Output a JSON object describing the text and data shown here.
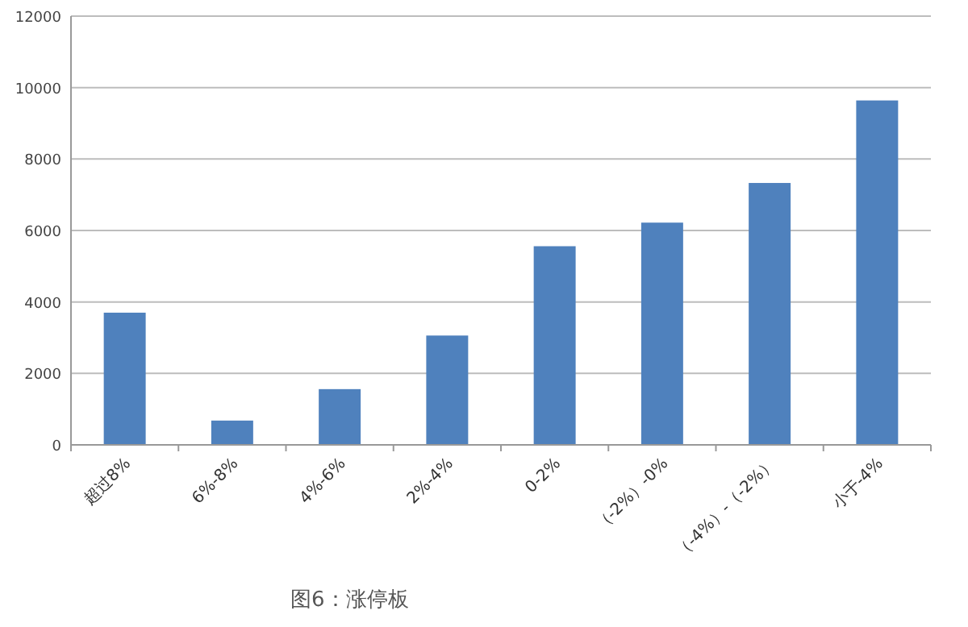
{
  "chart_data": {
    "type": "bar",
    "categories": [
      "超过8%",
      "6%-8%",
      "4%-6%",
      "2%-4%",
      "0-2%",
      "（-2%）-0%",
      "（-4%）-（-2%）",
      "小于-4%"
    ],
    "values": [
      3700,
      680,
      1560,
      3060,
      5560,
      6220,
      7330,
      9640
    ],
    "color": "#4f81bd",
    "ylim": [
      0,
      12000
    ],
    "yticks": [
      0,
      2000,
      4000,
      6000,
      8000,
      10000,
      12000
    ],
    "grid": "y",
    "annotations": [
      "图6：涨停板"
    ]
  }
}
